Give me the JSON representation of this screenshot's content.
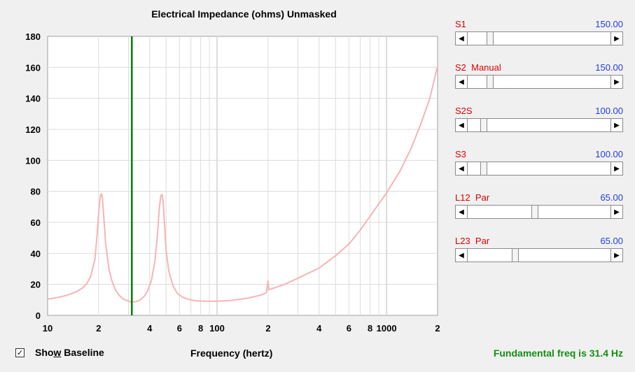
{
  "chart_data": {
    "type": "line",
    "title": "Electrical Impedance (ohms)   Unmasked",
    "xlabel": "Frequency (hertz)",
    "ylabel": "",
    "xscale": "log",
    "xlim": [
      10,
      2000
    ],
    "ylim": [
      0,
      180
    ],
    "yticks": [
      0,
      20,
      40,
      60,
      80,
      100,
      120,
      140,
      160,
      180
    ],
    "xtick_labels": [
      {
        "x": 10,
        "label": "10"
      },
      {
        "x": 20,
        "label": "2"
      },
      {
        "x": 40,
        "label": "4"
      },
      {
        "x": 60,
        "label": "6"
      },
      {
        "x": 80,
        "label": "8"
      },
      {
        "x": 100,
        "label": "100"
      },
      {
        "x": 200,
        "label": "2"
      },
      {
        "x": 400,
        "label": "4"
      },
      {
        "x": 600,
        "label": "6"
      },
      {
        "x": 800,
        "label": "8"
      },
      {
        "x": 1000,
        "label": "1000"
      },
      {
        "x": 2000,
        "label": "2"
      }
    ],
    "grid": true,
    "marker_line": {
      "x": 31.4,
      "color": "#008000"
    },
    "series": [
      {
        "color": "#f7b4b4",
        "points": [
          [
            10,
            10.5
          ],
          [
            11,
            11.2
          ],
          [
            12,
            12
          ],
          [
            13,
            13
          ],
          [
            14,
            14.2
          ],
          [
            15,
            15.6
          ],
          [
            16,
            17.5
          ],
          [
            17,
            20.3
          ],
          [
            18,
            25.5
          ],
          [
            19,
            36
          ],
          [
            19.6,
            52
          ],
          [
            20,
            66
          ],
          [
            20.4,
            76
          ],
          [
            20.7,
            78.5
          ],
          [
            21,
            77
          ],
          [
            21.5,
            62
          ],
          [
            22,
            46
          ],
          [
            23,
            30
          ],
          [
            24,
            22
          ],
          [
            25,
            17
          ],
          [
            26,
            14
          ],
          [
            27,
            12
          ],
          [
            28,
            10.5
          ],
          [
            30,
            9.2
          ],
          [
            31.4,
            8.5
          ],
          [
            33,
            8.8
          ],
          [
            35,
            9.8
          ],
          [
            37,
            12
          ],
          [
            39,
            16
          ],
          [
            41,
            22.5
          ],
          [
            43,
            35
          ],
          [
            44.5,
            52
          ],
          [
            45.5,
            68
          ],
          [
            46.5,
            77
          ],
          [
            47.3,
            78
          ],
          [
            48,
            74
          ],
          [
            49,
            58
          ],
          [
            50,
            42
          ],
          [
            52,
            28
          ],
          [
            55,
            19
          ],
          [
            58,
            14.5
          ],
          [
            62,
            12
          ],
          [
            67,
            10.5
          ],
          [
            75,
            9.4
          ],
          [
            85,
            9.1
          ],
          [
            100,
            9.1
          ],
          [
            120,
            9.6
          ],
          [
            150,
            11
          ],
          [
            180,
            13
          ],
          [
            195,
            14.5
          ],
          [
            200,
            22
          ],
          [
            202,
            16.5
          ],
          [
            250,
            20
          ],
          [
            300,
            24
          ],
          [
            400,
            30.5
          ],
          [
            500,
            38.5
          ],
          [
            600,
            46
          ],
          [
            700,
            55
          ],
          [
            800,
            64
          ],
          [
            1000,
            79
          ],
          [
            1200,
            93
          ],
          [
            1400,
            108
          ],
          [
            1600,
            124
          ],
          [
            1800,
            140
          ],
          [
            2000,
            161
          ]
        ]
      }
    ]
  },
  "sliders": [
    {
      "name": "S1",
      "value": "150.00",
      "fraction": 0.14
    },
    {
      "name": "S2  Manual",
      "value": "150.00",
      "fraction": 0.14
    },
    {
      "name": "S2S",
      "value": "100.00",
      "fraction": 0.095
    },
    {
      "name": "S3",
      "value": "100.00",
      "fraction": 0.095
    },
    {
      "name": "L12  Par",
      "value": "65.00",
      "fraction": 0.47
    },
    {
      "name": "L23  Par",
      "value": "65.00",
      "fraction": 0.325
    }
  ],
  "baseline": {
    "checked": true,
    "check_glyph": "✓",
    "label_pre": "Sho",
    "label_accel": "w",
    "label_post": " Baseline"
  },
  "fundamental": "Fundamental freq is 31.4 Hz",
  "icons": {
    "left": "◀",
    "right": "▶"
  }
}
